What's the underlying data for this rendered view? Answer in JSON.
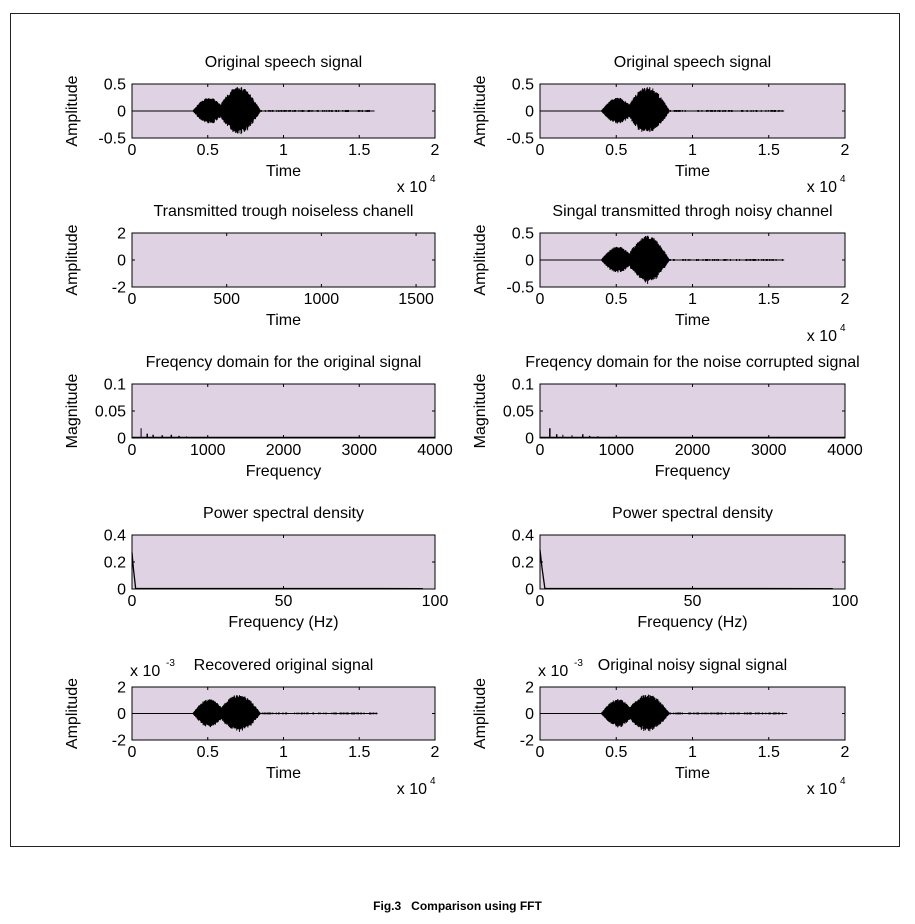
{
  "figure": {
    "caption": "Fig.3   Comparison using FFT",
    "plot_background": "#dfd3e3",
    "trace_color": "#000000"
  },
  "chart_data": [
    {
      "type": "line",
      "title": "Original speech signal",
      "xlabel": "Time",
      "ylabel": "Amplitude",
      "x_exponent": "x 10",
      "x_exponent_power": "4",
      "xlim": [
        0,
        2
      ],
      "ylim": [
        -0.5,
        0.5
      ],
      "xticks": [
        0,
        0.5,
        1,
        1.5,
        2
      ],
      "xtick_labels": [
        "0",
        "0.5",
        "1",
        "1.5",
        "2"
      ],
      "yticks": [
        0.5,
        0,
        -0.5
      ],
      "ytick_labels": [
        "0.5",
        "0",
        "-0.5"
      ],
      "grid": false,
      "signal": {
        "kind": "speech",
        "start": 0,
        "end": 1.6,
        "burst": [
          [
            0.4,
            0.62,
            0.25
          ],
          [
            0.56,
            0.85,
            0.45
          ]
        ]
      }
    },
    {
      "type": "line",
      "title": "Original speech signal",
      "xlabel": "Time",
      "ylabel": "Amplitude",
      "x_exponent": "x 10",
      "x_exponent_power": "4",
      "xlim": [
        0,
        2
      ],
      "ylim": [
        -0.5,
        0.5
      ],
      "xticks": [
        0,
        0.5,
        1,
        1.5,
        2
      ],
      "xtick_labels": [
        "0",
        "0.5",
        "1",
        "1.5",
        "2"
      ],
      "yticks": [
        0.5,
        0,
        -0.5
      ],
      "ytick_labels": [
        "0.5",
        "0",
        "-0.5"
      ],
      "grid": false,
      "signal": {
        "kind": "speech",
        "start": 0,
        "end": 1.6,
        "burst": [
          [
            0.4,
            0.62,
            0.25
          ],
          [
            0.56,
            0.85,
            0.45
          ]
        ]
      }
    },
    {
      "type": "line",
      "title": "Transmitted trough noiseless chanell",
      "xlabel": "Time",
      "ylabel": "Amplitude",
      "x_exponent": "",
      "x_exponent_power": "",
      "xlim": [
        0,
        1600
      ],
      "ylim": [
        -2,
        2
      ],
      "xticks": [
        0,
        500,
        1000,
        1500
      ],
      "xtick_labels": [
        "0",
        "500",
        "1000",
        "1500"
      ],
      "yticks": [
        2,
        0,
        -2
      ],
      "ytick_labels": [
        "2",
        "0",
        "-2"
      ],
      "grid": false,
      "signal": {
        "kind": "none"
      }
    },
    {
      "type": "line",
      "title": "Singal transmitted throgh noisy channel",
      "xlabel": "Time",
      "ylabel": "Amplitude",
      "x_exponent": "x 10",
      "x_exponent_power": "4",
      "xlim": [
        0,
        2
      ],
      "ylim": [
        -0.5,
        0.5
      ],
      "xticks": [
        0,
        0.5,
        1,
        1.5,
        2
      ],
      "xtick_labels": [
        "0",
        "0.5",
        "1",
        "1.5",
        "2"
      ],
      "yticks": [
        0.5,
        0,
        -0.5
      ],
      "ytick_labels": [
        "0.5",
        "0",
        "-0.5"
      ],
      "grid": false,
      "signal": {
        "kind": "speech",
        "start": 0,
        "end": 1.6,
        "burst": [
          [
            0.4,
            0.62,
            0.25
          ],
          [
            0.56,
            0.85,
            0.45
          ]
        ]
      }
    },
    {
      "type": "line",
      "title": "Freqency domain for the original signal",
      "xlabel": "Frequency",
      "ylabel": "Magnitude",
      "x_exponent": "",
      "x_exponent_power": "",
      "xlim": [
        0,
        4000
      ],
      "ylim": [
        0,
        0.1
      ],
      "xticks": [
        0,
        1000,
        2000,
        3000,
        4000
      ],
      "xtick_labels": [
        "0",
        "1000",
        "2000",
        "3000",
        "4000"
      ],
      "yticks": [
        0.1,
        0.05,
        0
      ],
      "ytick_labels": [
        "0.1",
        "0.05",
        "0"
      ],
      "grid": false,
      "signal": {
        "kind": "spectrum",
        "peaks": [
          [
            120,
            0.018
          ],
          [
            200,
            0.008
          ],
          [
            280,
            0.006
          ],
          [
            400,
            0.005
          ],
          [
            520,
            0.006
          ],
          [
            620,
            0.004
          ],
          [
            720,
            0.003
          ],
          [
            900,
            0.002
          ]
        ]
      }
    },
    {
      "type": "line",
      "title": "Freqency domain for the noise corrupted signal",
      "xlabel": "Frequency",
      "ylabel": "Magnitude",
      "x_exponent": "",
      "x_exponent_power": "",
      "xlim": [
        0,
        4000
      ],
      "ylim": [
        0,
        0.1
      ],
      "xticks": [
        0,
        1000,
        2000,
        3000,
        4000
      ],
      "xtick_labels": [
        "0",
        "1000",
        "2000",
        "3000",
        "4000"
      ],
      "yticks": [
        0.1,
        0.05,
        0
      ],
      "ytick_labels": [
        "0.1",
        "0.05",
        "0"
      ],
      "grid": false,
      "signal": {
        "kind": "spectrum",
        "peaks": [
          [
            130,
            0.018
          ],
          [
            220,
            0.007
          ],
          [
            300,
            0.006
          ],
          [
            420,
            0.005
          ],
          [
            560,
            0.007
          ],
          [
            650,
            0.004
          ],
          [
            760,
            0.003
          ],
          [
            900,
            0.002
          ]
        ]
      }
    },
    {
      "type": "line",
      "title": "Power spectral density",
      "xlabel": "Frequency (Hz)",
      "ylabel": "",
      "x_exponent": "",
      "x_exponent_power": "",
      "xlim": [
        0,
        100
      ],
      "ylim": [
        0,
        0.4
      ],
      "xticks": [
        0,
        50,
        100
      ],
      "xtick_labels": [
        "0",
        "50",
        "100"
      ],
      "yticks": [
        0.4,
        0.2,
        0
      ],
      "ytick_labels": [
        "0.4",
        "0.2",
        "0"
      ],
      "grid": false,
      "signal": {
        "kind": "psd",
        "peak": 0.27,
        "decay_end": 1.2,
        "tail_end": 96
      }
    },
    {
      "type": "line",
      "title": "Power spectral density",
      "xlabel": "Frequency (Hz)",
      "ylabel": "",
      "x_exponent": "",
      "x_exponent_power": "",
      "xlim": [
        0,
        100
      ],
      "ylim": [
        0,
        0.4
      ],
      "xticks": [
        0,
        50,
        100
      ],
      "xtick_labels": [
        "0",
        "50",
        "100"
      ],
      "yticks": [
        0.4,
        0.2,
        0
      ],
      "ytick_labels": [
        "0.4",
        "0.2",
        "0"
      ],
      "grid": false,
      "signal": {
        "kind": "psd",
        "peak": 0.29,
        "decay_end": 1.6,
        "tail_end": 96
      }
    },
    {
      "type": "line",
      "title": "Recovered original signal",
      "xlabel": "Time",
      "ylabel": "Amplitude",
      "x_exponent": "x 10",
      "x_exponent_power": "4",
      "y_exponent": "x 10",
      "y_exponent_power": "-3",
      "xlim": [
        0,
        2
      ],
      "ylim": [
        -2,
        2
      ],
      "xticks": [
        0,
        0.5,
        1,
        1.5,
        2
      ],
      "xtick_labels": [
        "0",
        "0.5",
        "1",
        "1.5",
        "2"
      ],
      "yticks": [
        2,
        0,
        -2
      ],
      "ytick_labels": [
        "2",
        "0",
        "-2"
      ],
      "grid": false,
      "signal": {
        "kind": "speech",
        "start": 0,
        "end": 1.62,
        "burst": [
          [
            0.4,
            0.62,
            1.1
          ],
          [
            0.56,
            0.85,
            1.45
          ]
        ]
      }
    },
    {
      "type": "line",
      "title": "Original noisy signal signal",
      "xlabel": "Time",
      "ylabel": "Amplitude",
      "x_exponent": "x 10",
      "x_exponent_power": "4",
      "y_exponent": "x 10",
      "y_exponent_power": "-3",
      "xlim": [
        0,
        2
      ],
      "ylim": [
        -2,
        2
      ],
      "xticks": [
        0,
        0.5,
        1,
        1.5,
        2
      ],
      "xtick_labels": [
        "0",
        "0.5",
        "1",
        "1.5",
        "2"
      ],
      "yticks": [
        2,
        0,
        -2
      ],
      "ytick_labels": [
        "2",
        "0",
        "-2"
      ],
      "grid": false,
      "signal": {
        "kind": "speech",
        "start": 0,
        "end": 1.62,
        "burst": [
          [
            0.4,
            0.62,
            1.1
          ],
          [
            0.56,
            0.85,
            1.45
          ]
        ]
      }
    }
  ]
}
